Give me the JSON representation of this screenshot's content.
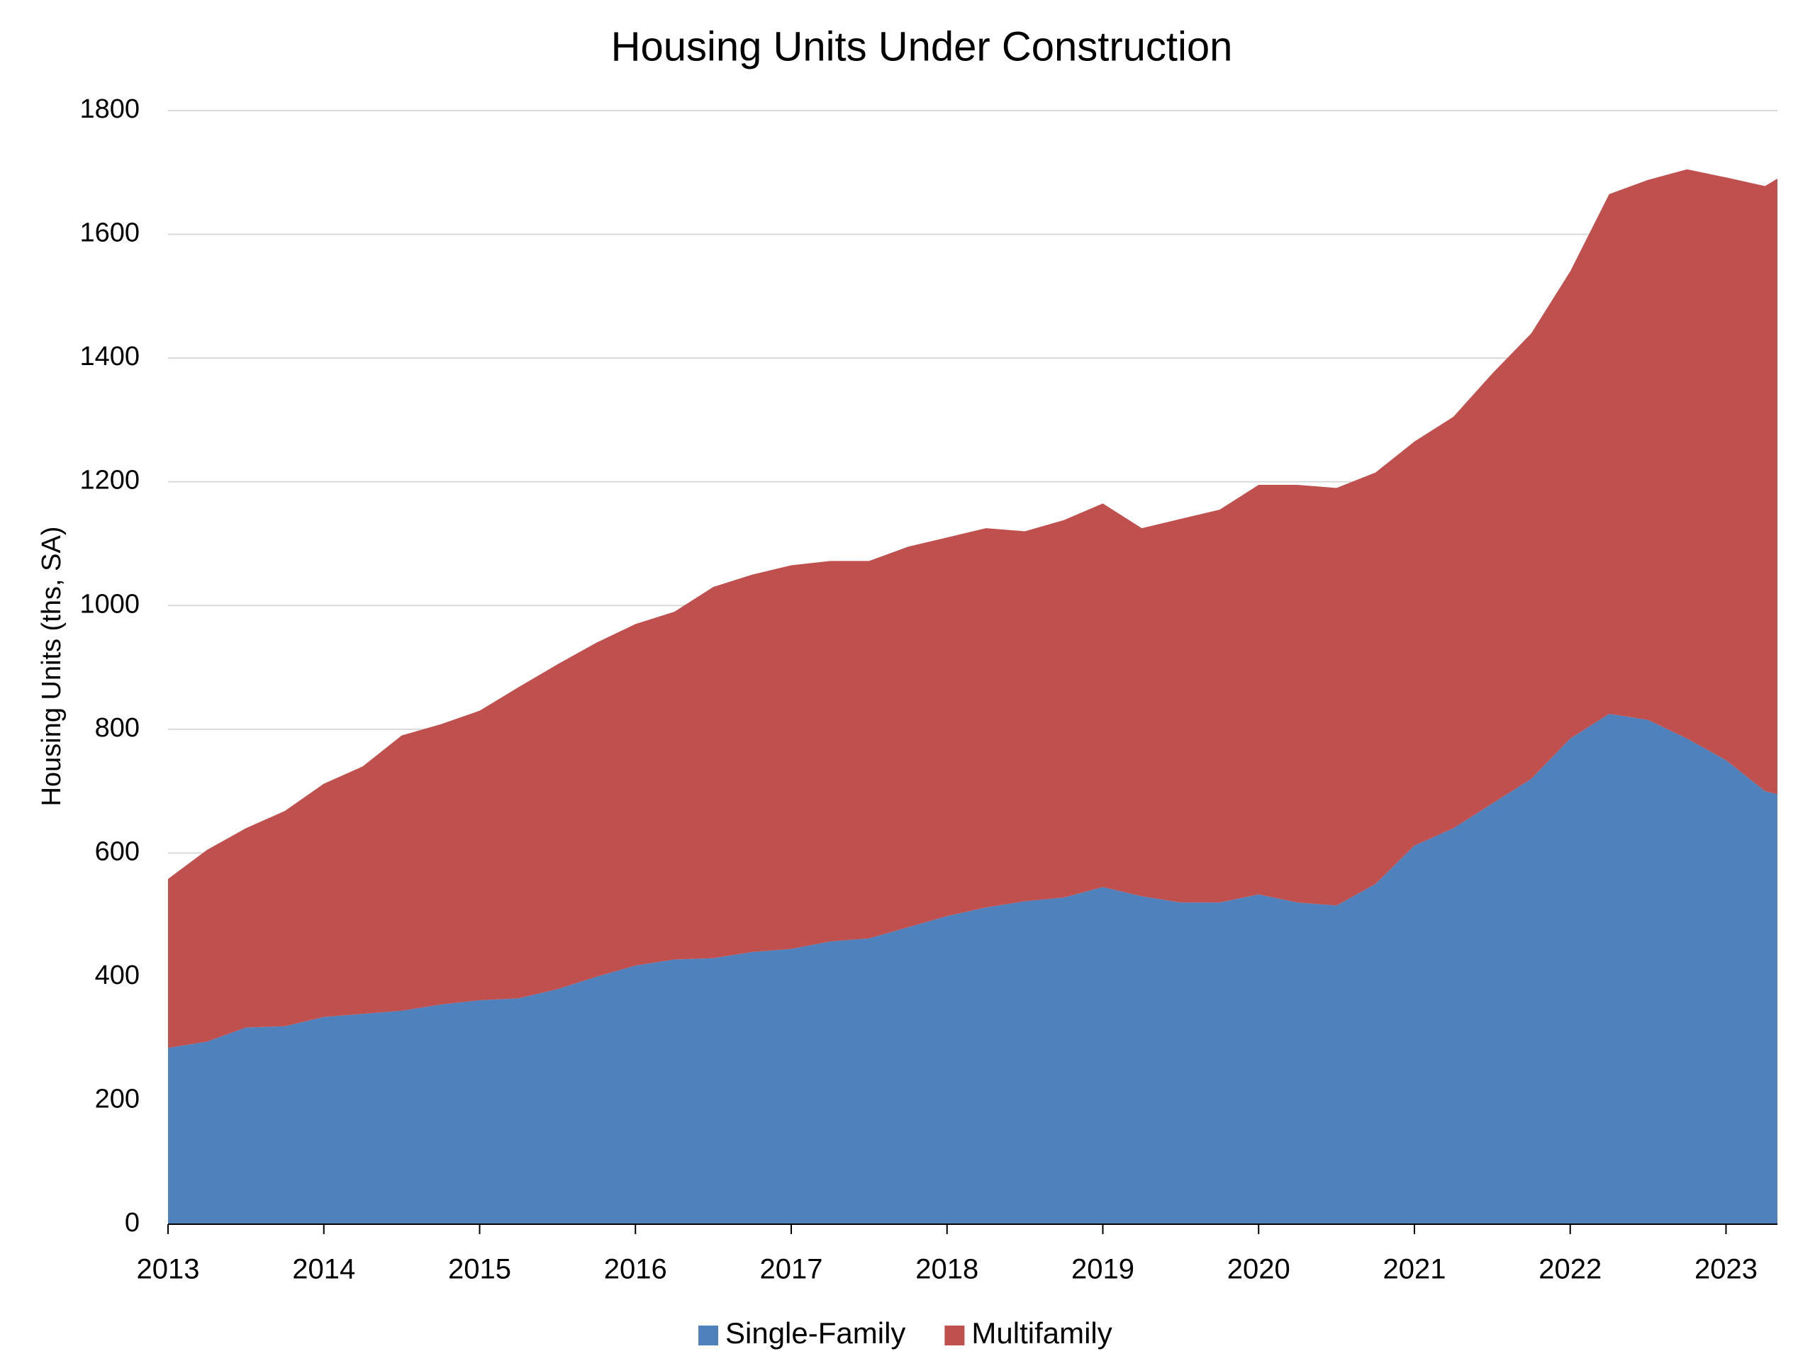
{
  "chart_data": {
    "type": "area",
    "stacked": true,
    "title": "Housing Units Under Construction",
    "y_label": "Housing Units (ths, SA)",
    "x": [
      2013,
      2013.25,
      2013.5,
      2013.75,
      2014,
      2014.25,
      2014.5,
      2014.75,
      2015,
      2015.25,
      2015.5,
      2015.75,
      2016,
      2016.25,
      2016.5,
      2016.75,
      2017,
      2017.25,
      2017.5,
      2017.75,
      2018,
      2018.25,
      2018.5,
      2018.75,
      2019,
      2019.25,
      2019.5,
      2019.75,
      2020,
      2020.25,
      2020.5,
      2020.75,
      2021,
      2021.25,
      2021.5,
      2021.75,
      2022,
      2022.25,
      2022.5,
      2022.75,
      2023,
      2023.25,
      2023.33
    ],
    "series": [
      {
        "name": "Single-Family",
        "color": "#4f81bd",
        "values": [
          285,
          295,
          318,
          320,
          335,
          340,
          345,
          355,
          362,
          365,
          380,
          400,
          418,
          428,
          430,
          440,
          445,
          457,
          462,
          480,
          498,
          512,
          522,
          528,
          545,
          530,
          520,
          520,
          533,
          520,
          515,
          550,
          612,
          640,
          680,
          720,
          785,
          825,
          815,
          785,
          750,
          700,
          695
        ]
      },
      {
        "name": "Multifamily",
        "color": "#c0504d",
        "values": [
          273,
          310,
          322,
          348,
          377,
          400,
          445,
          453,
          468,
          503,
          525,
          540,
          552,
          562,
          600,
          610,
          620,
          615,
          610,
          615,
          612,
          613,
          598,
          610,
          620,
          595,
          620,
          635,
          662,
          675,
          675,
          665,
          653,
          665,
          695,
          720,
          755,
          840,
          873,
          920,
          942,
          978,
          995
        ]
      }
    ],
    "xlim": [
      2013,
      2023.33
    ],
    "xticks": [
      2013,
      2014,
      2015,
      2016,
      2017,
      2018,
      2019,
      2020,
      2021,
      2022,
      2023
    ],
    "ylim": [
      0,
      1800
    ],
    "yticks": [
      0,
      200,
      400,
      600,
      800,
      1000,
      1200,
      1400,
      1600,
      1800
    ],
    "grid": true,
    "legend": "bottom"
  }
}
